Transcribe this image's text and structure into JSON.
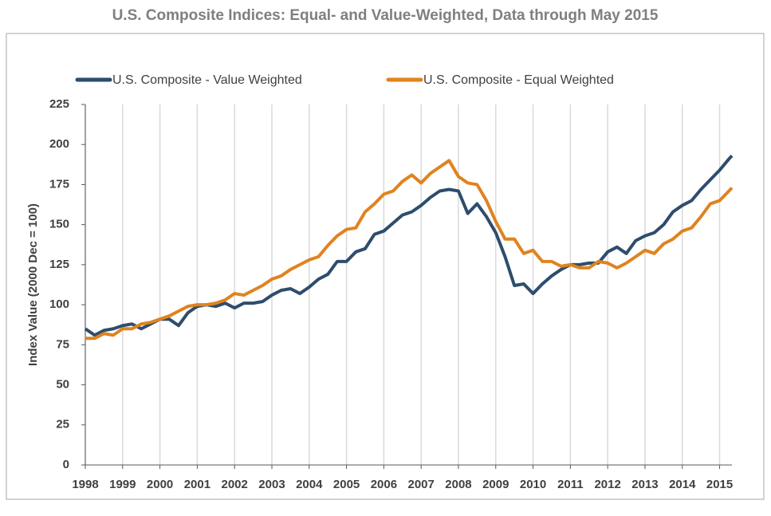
{
  "chart_data": {
    "type": "line",
    "title": "U.S. Composite Indices: Equal- and Value-Weighted, Data through May 2015",
    "y_label": "Index Value (2000 Dec = 100)",
    "x": [
      1998,
      1998.25,
      1998.5,
      1998.75,
      1999,
      1999.25,
      1999.5,
      1999.75,
      2000,
      2000.25,
      2000.5,
      2000.75,
      2001,
      2001.25,
      2001.5,
      2001.75,
      2002,
      2002.25,
      2002.5,
      2002.75,
      2003,
      2003.25,
      2003.5,
      2003.75,
      2004,
      2004.25,
      2004.5,
      2004.75,
      2005,
      2005.25,
      2005.5,
      2005.75,
      2006,
      2006.25,
      2006.5,
      2006.75,
      2007,
      2007.25,
      2007.5,
      2007.75,
      2008,
      2008.25,
      2008.5,
      2008.75,
      2009,
      2009.25,
      2009.5,
      2009.75,
      2010,
      2010.25,
      2010.5,
      2010.75,
      2011,
      2011.25,
      2011.5,
      2011.75,
      2012,
      2012.25,
      2012.5,
      2012.75,
      2013,
      2013.25,
      2013.5,
      2013.75,
      2014,
      2014.25,
      2014.5,
      2014.75,
      2015,
      2015.25,
      2015.33
    ],
    "series": [
      {
        "name": "U.S. Composite - Value Weighted",
        "color": "#2e4d6d",
        "values": [
          85,
          81,
          84,
          85,
          87,
          88,
          85,
          88,
          91,
          91,
          87,
          95,
          99,
          100,
          99,
          101,
          98,
          101,
          101,
          102,
          106,
          109,
          110,
          107,
          111,
          116,
          119,
          127,
          127,
          133,
          135,
          144,
          146,
          151,
          156,
          158,
          162,
          167,
          171,
          172,
          171,
          157,
          163,
          155,
          145,
          130,
          112,
          113,
          107,
          113,
          118,
          122,
          125,
          125,
          126,
          126,
          133,
          136,
          132,
          140,
          143,
          145,
          150,
          158,
          162,
          165,
          172,
          178,
          184,
          191,
          193
        ]
      },
      {
        "name": "U.S. Composite - Equal Weighted",
        "color": "#e0831f",
        "values": [
          79,
          79,
          82,
          81,
          85,
          85,
          88,
          89,
          91,
          93,
          96,
          99,
          100,
          100,
          101,
          103,
          107,
          106,
          109,
          112,
          116,
          118,
          122,
          125,
          128,
          130,
          137,
          143,
          147,
          148,
          158,
          163,
          169,
          171,
          177,
          181,
          176,
          182,
          186,
          190,
          180,
          176,
          175,
          165,
          152,
          141,
          141,
          132,
          134,
          127,
          127,
          124,
          125,
          123,
          123,
          127,
          126,
          123,
          126,
          130,
          134,
          132,
          138,
          141,
          146,
          148,
          155,
          163,
          165,
          171,
          173
        ]
      }
    ],
    "xlim": [
      1998,
      2015.33
    ],
    "xticks": [
      1998,
      1999,
      2000,
      2001,
      2002,
      2003,
      2004,
      2005,
      2006,
      2007,
      2008,
      2009,
      2010,
      2011,
      2012,
      2013,
      2014,
      2015
    ],
    "ylim": [
      0,
      225
    ],
    "yticks": [
      0,
      25,
      50,
      75,
      100,
      125,
      150,
      175,
      200,
      225
    ],
    "x_grid": true,
    "legend": "top"
  }
}
